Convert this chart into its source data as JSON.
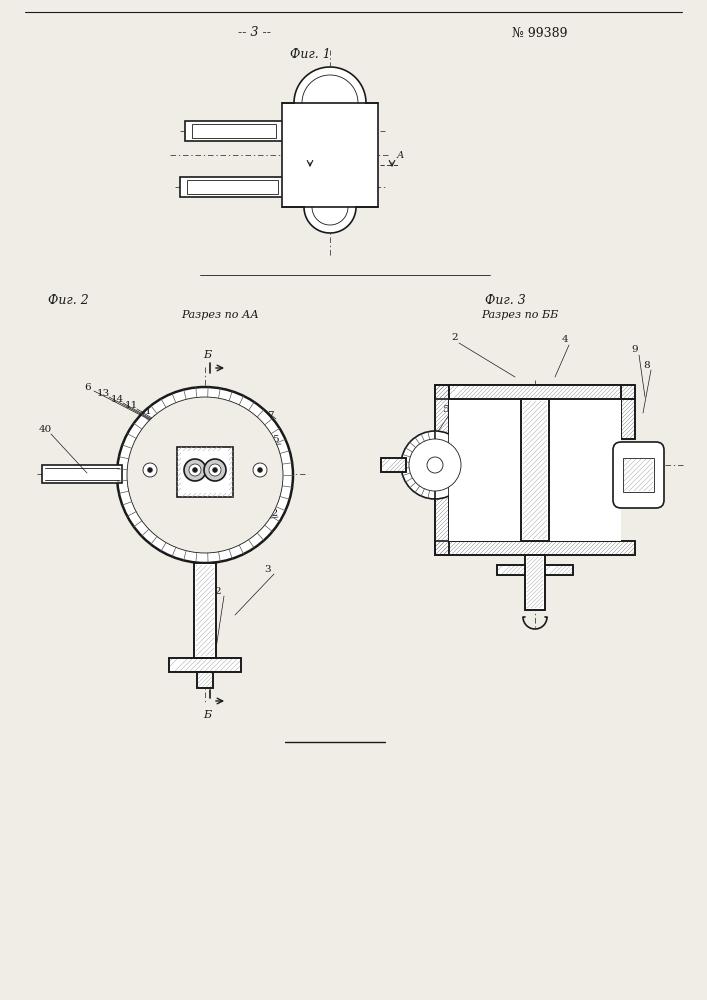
{
  "title_page_num": "-- 3 --",
  "patent_num": "№ 99389",
  "fig1_label": "Фиг. 1",
  "fig2_label": "Фиг. 2",
  "fig3_label": "Фиг. 3",
  "fig2_section": "Разрез по АА",
  "fig3_section": "Разрез по ББ",
  "bg_color": "#f0ede6",
  "line_color": "#1a1a1a"
}
